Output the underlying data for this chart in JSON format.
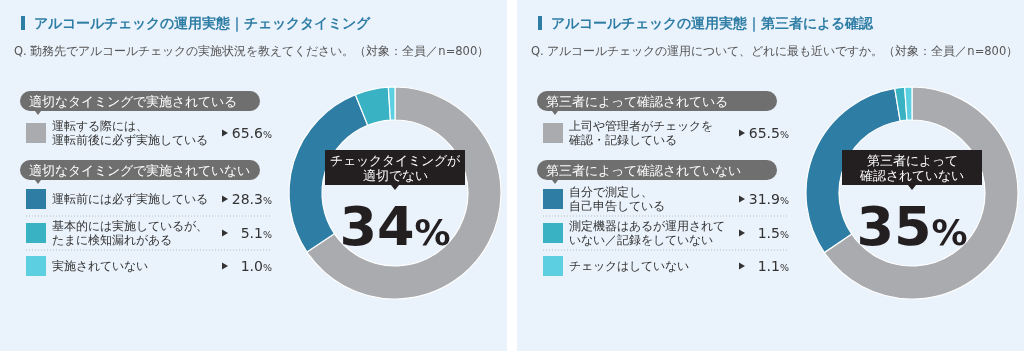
{
  "chart_data": [
    {
      "type": "donut",
      "title": "アルコールチェックの運用実態｜チェックタイミング",
      "subtitle": "Q. 勤務先でアルコールチェックの実施状況を教えてください。（対象：全員／n=800）",
      "categories": [
        "運転する際には、運転前後に必ず実施している",
        "運転前には必ず実施している",
        "基本的には実施しているが、たまに検知漏れがある",
        "実施されていない"
      ],
      "legend": "left",
      "values": [
        65.6,
        28.3,
        5.1,
        1.0
      ],
      "colors": [
        "#a9abae",
        "#2e7da5",
        "#39b2c3",
        "#5ccfe0"
      ],
      "value_labels": [
        "65.6%",
        "28.3%",
        "5.1%",
        "1.0%"
      ],
      "annotations": [
        "適切なタイミングで実施されている",
        "適切なタイミングで実施されていない",
        "チェックタイミングが適切でない",
        "34%"
      ]
    },
    {
      "type": "donut",
      "title": "アルコールチェックの運用実態｜第三者による確認",
      "subtitle": "Q. アルコールチェックの運用について、どれに最も近いですか。（対象：全員／n=800）",
      "categories": [
        "上司や管理者がチェックを確認・記録している",
        "自分で測定し、自己申告している",
        "測定機器はあるが運用されていない／記録をしていない",
        "チェックはしていない"
      ],
      "legend": "left",
      "values": [
        65.5,
        31.9,
        1.5,
        1.1
      ],
      "colors": [
        "#a9abae",
        "#2e7da5",
        "#39b2c3",
        "#5ccfe0"
      ],
      "value_labels": [
        "65.5%",
        "31.9%",
        "1.5%",
        "1.1%"
      ],
      "annotations": [
        "第三者によって確認されている",
        "第三者によって確認されていない",
        "第三者によって確認されていない",
        "35%"
      ]
    }
  ]
}
